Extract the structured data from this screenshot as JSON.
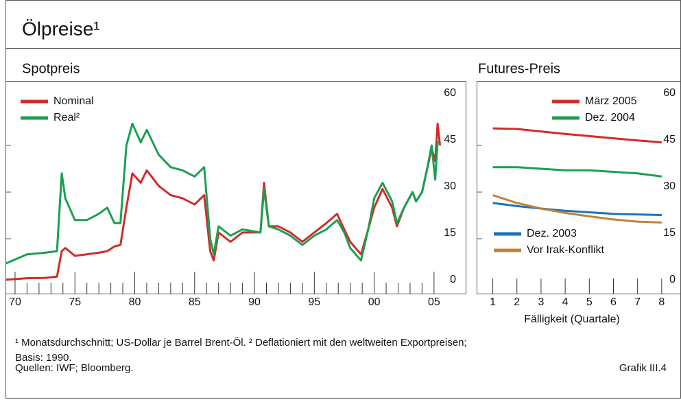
{
  "title": "Ölpreise¹",
  "footnote": "¹ Monatsdurchschnitt; US-Dollar je Barrel Brent-Öl.  ² Deflationiert mit den weltweiten Exportpreisen; Basis: 1990.",
  "source": "Quellen: IWF; Bloomberg.",
  "figure_id": "Grafik III.4",
  "chart_data": [
    {
      "type": "line",
      "title": "Spotpreis",
      "x": [
        1969.2,
        1971,
        1972.5,
        1973.5,
        1973.9,
        1974.2,
        1975,
        1976,
        1977,
        1977.7,
        1978.3,
        1978.8,
        1979.3,
        1979.8,
        1980.5,
        1981,
        1982,
        1983,
        1984,
        1985,
        1985.8,
        1986.3,
        1986.6,
        1987,
        1988,
        1989,
        1990.5,
        1990.8,
        1991.2,
        1992,
        1993,
        1994,
        1995,
        1996,
        1996.9,
        1997.5,
        1998,
        1998.9,
        1999.5,
        2000,
        2000.7,
        2001.5,
        2001.9,
        2002.5,
        2003.2,
        2003.5,
        2004,
        2004.4,
        2004.8,
        2005.1,
        2005.3,
        2005.5
      ],
      "series": [
        {
          "name": "Nominal",
          "color": "#d12b2b",
          "values": [
            1.8,
            2.3,
            2.4,
            2.8,
            11,
            12,
            9.5,
            10,
            10.5,
            11,
            12.5,
            13,
            25,
            36,
            33,
            37,
            32,
            29,
            28,
            26,
            29,
            11,
            8,
            17,
            14,
            17,
            17,
            33,
            19,
            19,
            17,
            14,
            17,
            20,
            23,
            18,
            14,
            10,
            18,
            25,
            31,
            25,
            19,
            25,
            30,
            27,
            30,
            37,
            44,
            40,
            52,
            45
          ]
        },
        {
          "name": "Real²",
          "color": "#1aa050",
          "values": [
            7,
            10,
            10.5,
            11,
            36,
            28,
            21,
            21,
            23,
            25,
            20,
            20,
            45,
            52,
            46,
            50,
            42,
            38,
            37,
            35,
            38,
            15,
            10,
            19,
            16,
            18,
            17,
            31,
            19,
            18,
            16,
            13,
            16,
            18,
            21,
            17,
            12,
            8,
            18,
            28,
            33,
            27,
            20,
            25,
            30,
            27,
            30,
            37,
            45,
            34,
            46,
            46
          ]
        }
      ],
      "xlim": [
        1969.2,
        2007.7
      ],
      "xticks": [
        {
          "value": 1970,
          "label": "70"
        },
        {
          "value": 1975,
          "label": "75"
        },
        {
          "value": 1980,
          "label": "80"
        },
        {
          "value": 1985,
          "label": "85"
        },
        {
          "value": 1990,
          "label": "90"
        },
        {
          "value": 1995,
          "label": "95"
        },
        {
          "value": 2000,
          "label": "00"
        },
        {
          "value": 2005,
          "label": "05"
        }
      ],
      "xminorticks": [
        1971,
        1972,
        1973,
        1974,
        1976,
        1977,
        1978,
        1979,
        1981,
        1982,
        1983,
        1984,
        1986,
        1987,
        1988,
        1989,
        1991,
        1992,
        1993,
        1994,
        1996,
        1997,
        1998,
        1999,
        2001,
        2002,
        2003,
        2004
      ],
      "ylim": [
        0,
        60
      ],
      "yticks": [
        0,
        15,
        30,
        45,
        60
      ],
      "legend": "upper left"
    },
    {
      "type": "line",
      "title": "Futures-Preis",
      "xlabel": "Fälligkeit (Quartale)",
      "x": [
        1,
        2,
        3,
        4,
        5,
        6,
        7,
        8
      ],
      "series": [
        {
          "name": "März 2005",
          "color": "#d12b2b",
          "legend": "upper right",
          "values": [
            50.5,
            50.3,
            49.5,
            48.7,
            48,
            47.3,
            46.6,
            46
          ]
        },
        {
          "name": "Dez. 2004",
          "color": "#1aa050",
          "legend": "upper right",
          "values": [
            38,
            38,
            37.5,
            37,
            37,
            36.5,
            36,
            35
          ]
        },
        {
          "name": "Dez. 2003",
          "color": "#1a73b8",
          "legend": "lower left",
          "values": [
            26.5,
            25.5,
            24.7,
            24,
            23.5,
            23,
            22.8,
            22.6
          ]
        },
        {
          "name": "Vor Irak-Konflikt",
          "color": "#c0803a",
          "legend": "lower left",
          "values": [
            29,
            26.5,
            24.7,
            23.3,
            22.2,
            21.2,
            20.5,
            20.2
          ]
        }
      ],
      "xlim": [
        0.33,
        8.8
      ],
      "xticks": [
        1,
        2,
        3,
        4,
        5,
        6,
        7,
        8
      ],
      "ylim": [
        0,
        60
      ],
      "yticks": [
        0,
        15,
        30,
        45,
        60
      ]
    }
  ]
}
